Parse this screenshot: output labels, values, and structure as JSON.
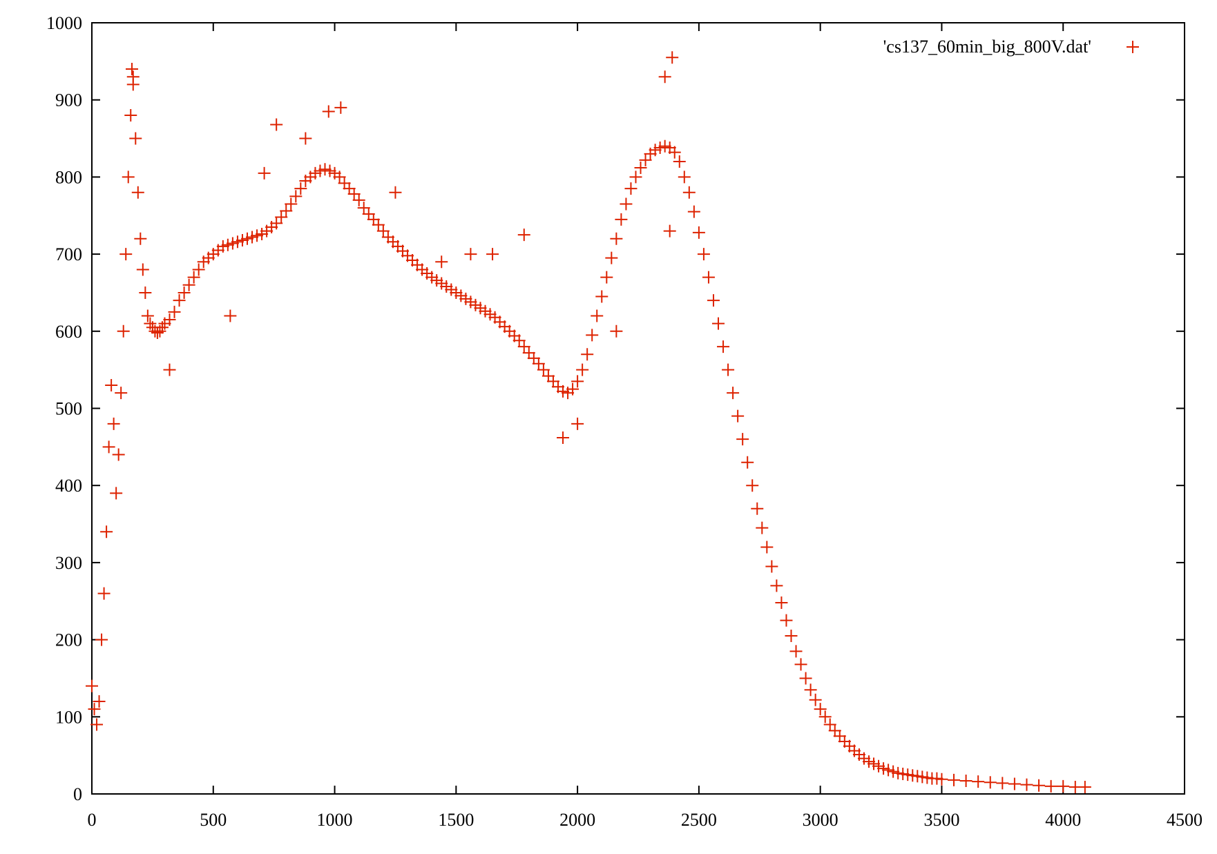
{
  "chart_data": {
    "type": "scatter",
    "title": "",
    "xlabel": "",
    "ylabel": "",
    "xlim": [
      0,
      4500
    ],
    "ylim": [
      0,
      1000
    ],
    "grid": false,
    "legend_position": "top-right",
    "marker": "+",
    "x_ticks": [
      {
        "value": 0,
        "label": "0"
      },
      {
        "value": 500,
        "label": "500"
      },
      {
        "value": 1000,
        "label": "1000"
      },
      {
        "value": 1500,
        "label": "1500"
      },
      {
        "value": 2000,
        "label": "2000"
      },
      {
        "value": 2500,
        "label": "2500"
      },
      {
        "value": 3000,
        "label": "3000"
      },
      {
        "value": 3500,
        "label": "3500"
      },
      {
        "value": 4000,
        "label": "4000"
      },
      {
        "value": 4500,
        "label": "4500"
      }
    ],
    "y_ticks": [
      {
        "value": 0,
        "label": "0"
      },
      {
        "value": 100,
        "label": "100"
      },
      {
        "value": 200,
        "label": "200"
      },
      {
        "value": 300,
        "label": "300"
      },
      {
        "value": 400,
        "label": "400"
      },
      {
        "value": 500,
        "label": "500"
      },
      {
        "value": 600,
        "label": "600"
      },
      {
        "value": 700,
        "label": "700"
      },
      {
        "value": 800,
        "label": "800"
      },
      {
        "value": 900,
        "label": "900"
      },
      {
        "value": 1000,
        "label": "1000"
      }
    ],
    "series": [
      {
        "name": "'cs137_60min_big_800V.dat'",
        "color": "#dd2200",
        "points": [
          [
            0,
            140
          ],
          [
            10,
            110
          ],
          [
            20,
            90
          ],
          [
            30,
            120
          ],
          [
            40,
            200
          ],
          [
            50,
            260
          ],
          [
            60,
            340
          ],
          [
            70,
            450
          ],
          [
            80,
            530
          ],
          [
            90,
            480
          ],
          [
            100,
            390
          ],
          [
            110,
            440
          ],
          [
            120,
            520
          ],
          [
            130,
            600
          ],
          [
            140,
            700
          ],
          [
            150,
            800
          ],
          [
            160,
            880
          ],
          [
            170,
            920
          ],
          [
            180,
            850
          ],
          [
            190,
            780
          ],
          [
            200,
            720
          ],
          [
            210,
            680
          ],
          [
            220,
            650
          ],
          [
            230,
            620
          ],
          [
            240,
            610
          ],
          [
            250,
            605
          ],
          [
            260,
            600
          ],
          [
            270,
            598
          ],
          [
            280,
            600
          ],
          [
            290,
            605
          ],
          [
            300,
            610
          ],
          [
            320,
            615
          ],
          [
            340,
            625
          ],
          [
            360,
            640
          ],
          [
            380,
            650
          ],
          [
            400,
            660
          ],
          [
            420,
            670
          ],
          [
            440,
            680
          ],
          [
            460,
            690
          ],
          [
            480,
            695
          ],
          [
            500,
            700
          ],
          [
            520,
            705
          ],
          [
            540,
            710
          ],
          [
            560,
            712
          ],
          [
            580,
            714
          ],
          [
            600,
            716
          ],
          [
            620,
            718
          ],
          [
            640,
            720
          ],
          [
            660,
            722
          ],
          [
            680,
            724
          ],
          [
            700,
            726
          ],
          [
            720,
            730
          ],
          [
            740,
            735
          ],
          [
            760,
            740
          ],
          [
            780,
            748
          ],
          [
            800,
            756
          ],
          [
            820,
            765
          ],
          [
            840,
            775
          ],
          [
            860,
            785
          ],
          [
            880,
            795
          ],
          [
            900,
            800
          ],
          [
            920,
            805
          ],
          [
            940,
            808
          ],
          [
            960,
            810
          ],
          [
            980,
            808
          ],
          [
            1000,
            805
          ],
          [
            1020,
            800
          ],
          [
            1040,
            792
          ],
          [
            1060,
            785
          ],
          [
            1080,
            778
          ],
          [
            1100,
            770
          ],
          [
            1120,
            760
          ],
          [
            1140,
            752
          ],
          [
            1160,
            745
          ],
          [
            1180,
            738
          ],
          [
            1200,
            730
          ],
          [
            1220,
            722
          ],
          [
            1240,
            716
          ],
          [
            1260,
            710
          ],
          [
            1280,
            704
          ],
          [
            1300,
            698
          ],
          [
            1320,
            692
          ],
          [
            1340,
            686
          ],
          [
            1360,
            680
          ],
          [
            1380,
            675
          ],
          [
            1400,
            670
          ],
          [
            1420,
            666
          ],
          [
            1440,
            662
          ],
          [
            1460,
            658
          ],
          [
            1480,
            654
          ],
          [
            1500,
            650
          ],
          [
            1520,
            646
          ],
          [
            1540,
            642
          ],
          [
            1560,
            638
          ],
          [
            1580,
            634
          ],
          [
            1600,
            630
          ],
          [
            1620,
            626
          ],
          [
            1640,
            622
          ],
          [
            1660,
            618
          ],
          [
            1680,
            612
          ],
          [
            1700,
            606
          ],
          [
            1720,
            600
          ],
          [
            1740,
            594
          ],
          [
            1760,
            588
          ],
          [
            1780,
            580
          ],
          [
            1800,
            572
          ],
          [
            1820,
            565
          ],
          [
            1840,
            558
          ],
          [
            1860,
            550
          ],
          [
            1880,
            542
          ],
          [
            1900,
            535
          ],
          [
            1920,
            528
          ],
          [
            1940,
            522
          ],
          [
            1960,
            520
          ],
          [
            1980,
            525
          ],
          [
            2000,
            535
          ],
          [
            2020,
            550
          ],
          [
            2040,
            570
          ],
          [
            2060,
            595
          ],
          [
            2080,
            620
          ],
          [
            2100,
            645
          ],
          [
            2120,
            670
          ],
          [
            2140,
            695
          ],
          [
            2160,
            720
          ],
          [
            2180,
            745
          ],
          [
            2200,
            765
          ],
          [
            2220,
            785
          ],
          [
            2240,
            800
          ],
          [
            2260,
            812
          ],
          [
            2280,
            822
          ],
          [
            2300,
            830
          ],
          [
            2320,
            835
          ],
          [
            2340,
            838
          ],
          [
            2360,
            840
          ],
          [
            2380,
            838
          ],
          [
            2400,
            832
          ],
          [
            2420,
            820
          ],
          [
            2440,
            800
          ],
          [
            2460,
            780
          ],
          [
            2480,
            755
          ],
          [
            2500,
            728
          ],
          [
            2520,
            700
          ],
          [
            2540,
            670
          ],
          [
            2560,
            640
          ],
          [
            2580,
            610
          ],
          [
            2600,
            580
          ],
          [
            2620,
            550
          ],
          [
            2640,
            520
          ],
          [
            2660,
            490
          ],
          [
            2680,
            460
          ],
          [
            2700,
            430
          ],
          [
            2720,
            400
          ],
          [
            2740,
            370
          ],
          [
            2760,
            345
          ],
          [
            2780,
            320
          ],
          [
            2800,
            295
          ],
          [
            2820,
            270
          ],
          [
            2840,
            248
          ],
          [
            2860,
            225
          ],
          [
            2880,
            205
          ],
          [
            2900,
            185
          ],
          [
            2920,
            168
          ],
          [
            2940,
            150
          ],
          [
            2960,
            135
          ],
          [
            2980,
            122
          ],
          [
            3000,
            110
          ],
          [
            3020,
            100
          ],
          [
            3040,
            90
          ],
          [
            3060,
            82
          ],
          [
            3080,
            75
          ],
          [
            3100,
            68
          ],
          [
            3120,
            62
          ],
          [
            3140,
            56
          ],
          [
            3160,
            51
          ],
          [
            3180,
            46
          ],
          [
            3200,
            42
          ],
          [
            3220,
            39
          ],
          [
            3240,
            36
          ],
          [
            3260,
            33
          ],
          [
            3280,
            31
          ],
          [
            3300,
            29
          ],
          [
            3320,
            27
          ],
          [
            3340,
            26
          ],
          [
            3360,
            25
          ],
          [
            3380,
            24
          ],
          [
            3400,
            23
          ],
          [
            3420,
            22
          ],
          [
            3440,
            21
          ],
          [
            3460,
            20
          ],
          [
            3480,
            20
          ],
          [
            3500,
            19
          ],
          [
            3550,
            18
          ],
          [
            3600,
            17
          ],
          [
            3650,
            16
          ],
          [
            3700,
            15
          ],
          [
            3750,
            14
          ],
          [
            3800,
            13
          ],
          [
            3850,
            12
          ],
          [
            3900,
            11
          ],
          [
            3950,
            10
          ],
          [
            4000,
            10
          ],
          [
            4050,
            9
          ],
          [
            4090,
            9
          ],
          [
            165,
            940
          ],
          [
            170,
            930
          ],
          [
            975,
            885
          ],
          [
            1025,
            890
          ],
          [
            760,
            868
          ],
          [
            2390,
            955
          ],
          [
            2360,
            930
          ],
          [
            1780,
            725
          ],
          [
            2380,
            730
          ],
          [
            570,
            620
          ],
          [
            320,
            550
          ],
          [
            1940,
            462
          ],
          [
            2000,
            480
          ],
          [
            1250,
            780
          ],
          [
            880,
            850
          ],
          [
            710,
            805
          ],
          [
            1440,
            690
          ],
          [
            1560,
            700
          ],
          [
            1650,
            700
          ],
          [
            2160,
            600
          ]
        ]
      }
    ]
  }
}
